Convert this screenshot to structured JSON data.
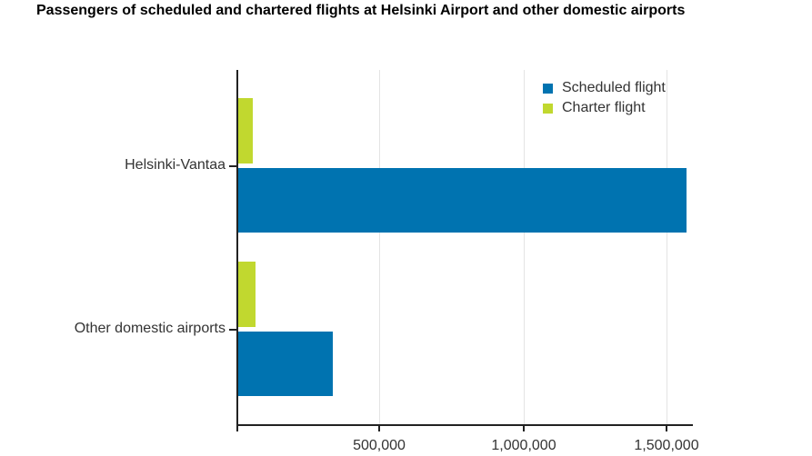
{
  "title": "Passengers of scheduled and chartered flights at Helsinki Airport and other domestic airports",
  "colors": {
    "scheduled": "#0073b0",
    "charter": "#c1d82f",
    "axis": "#222222",
    "grid": "#e4e4e4"
  },
  "legend": {
    "items": [
      {
        "label": "Scheduled flight",
        "color": "#0073b0"
      },
      {
        "label": "Charter flight",
        "color": "#c1d82f"
      }
    ]
  },
  "axis": {
    "x_ticks": [
      "500,000",
      "1,000,000",
      "1,500,000"
    ],
    "y_labels": [
      "Helsinki-Vantaa",
      "Other domestic airports"
    ]
  },
  "chart_data": {
    "type": "bar",
    "orientation": "horizontal",
    "title": "Passengers of scheduled and chartered flights at Helsinki Airport and other domestic airports",
    "categories": [
      "Helsinki-Vantaa",
      "Other domestic airports"
    ],
    "series": [
      {
        "name": "Scheduled flight",
        "color": "#0073b0",
        "values": [
          1570000,
          336000
        ]
      },
      {
        "name": "Charter flight",
        "color": "#c1d82f",
        "values": [
          57000,
          67000
        ]
      }
    ],
    "xlabel": "",
    "ylabel": "",
    "xlim": [
      0,
      1590000
    ],
    "x_ticks": [
      0,
      500000,
      1000000,
      1500000
    ],
    "x_tick_labels": [
      "",
      "500,000",
      "1,000,000",
      "1,500,000"
    ],
    "grid": "vertical",
    "legend_position": "top-right inside"
  }
}
